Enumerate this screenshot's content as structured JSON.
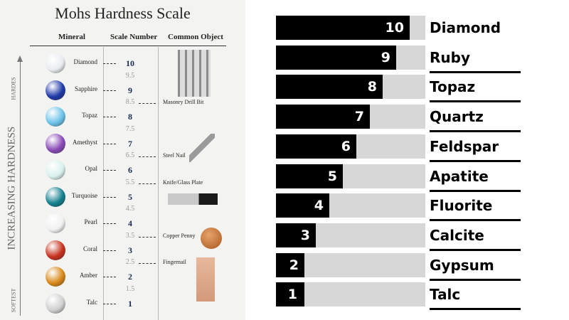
{
  "left_chart": {
    "title": "Mohs Hardness Scale",
    "column_headers": {
      "mineral": "Mineral",
      "scale": "Scale Number",
      "object": "Common Object"
    },
    "axis_label": "INCREASING HARDNESS",
    "top_label": "HARDES",
    "bottom_label": "SOFTEST",
    "minerals": [
      {
        "name": "Diamond",
        "scale": "10",
        "gem_color": "#e9ecef",
        "icon": "diamond-gem-icon"
      },
      {
        "name": "Sapphire",
        "scale": "9",
        "gem_color": "#1f3aa8",
        "icon": "sapphire-gem-icon"
      },
      {
        "name": "Topaz",
        "scale": "8",
        "gem_color": "#6cc3ea",
        "icon": "topaz-gem-icon"
      },
      {
        "name": "Amethyst",
        "scale": "7",
        "gem_color": "#8a4bb8",
        "icon": "amethyst-gem-icon"
      },
      {
        "name": "Opal",
        "scale": "6",
        "gem_color": "#d9f1ec",
        "icon": "opal-gem-icon"
      },
      {
        "name": "Turquoise",
        "scale": "5",
        "gem_color": "#15808f",
        "icon": "turquoise-gem-icon"
      },
      {
        "name": "Pearl",
        "scale": "4",
        "gem_color": "#f1f1f1",
        "icon": "pearl-icon"
      },
      {
        "name": "Coral",
        "scale": "3",
        "gem_color": "#c8321f",
        "icon": "coral-bead-icon"
      },
      {
        "name": "Amber",
        "scale": "2",
        "gem_color": "#d9891a",
        "icon": "amber-stone-icon"
      },
      {
        "name": "Talc",
        "scale": "1",
        "gem_color": "#d0d0d0",
        "icon": "talc-rock-icon"
      }
    ],
    "half_steps": [
      "9.5",
      "8.5",
      "7.5",
      "6.5",
      "5.5",
      "4.5",
      "3.5",
      "2.5",
      "1.5"
    ],
    "common_objects": [
      {
        "label": "Masonry Drill Bit",
        "scale": "8.5",
        "icon": "drill-bits-icon"
      },
      {
        "label": "Steel Nail",
        "scale": "6.5",
        "icon": "steel-nail-icon"
      },
      {
        "label": "Knife/Glass Plate",
        "scale": "5.5",
        "icon": "knife-icon"
      },
      {
        "label": "Copper Penny",
        "scale": "3.5",
        "icon": "copper-penny-icon"
      },
      {
        "label": "Fingernail",
        "scale": "2.5",
        "icon": "finger-hand-icon"
      }
    ]
  },
  "chart_data": {
    "type": "bar",
    "orientation": "horizontal",
    "categories": [
      "Diamond",
      "Ruby",
      "Topaz",
      "Quartz",
      "Feldspar",
      "Apatite",
      "Fluorite",
      "Calcite",
      "Gypsum",
      "Talc"
    ],
    "values": [
      10,
      9,
      8,
      7,
      6,
      5,
      4,
      3,
      2,
      1
    ],
    "xlim": [
      0,
      10
    ],
    "value_labels": [
      "10",
      "9",
      "8",
      "7",
      "6",
      "5",
      "4",
      "3",
      "2",
      "1"
    ],
    "bar_color": "#000000",
    "track_color": "#d7d7d7"
  }
}
